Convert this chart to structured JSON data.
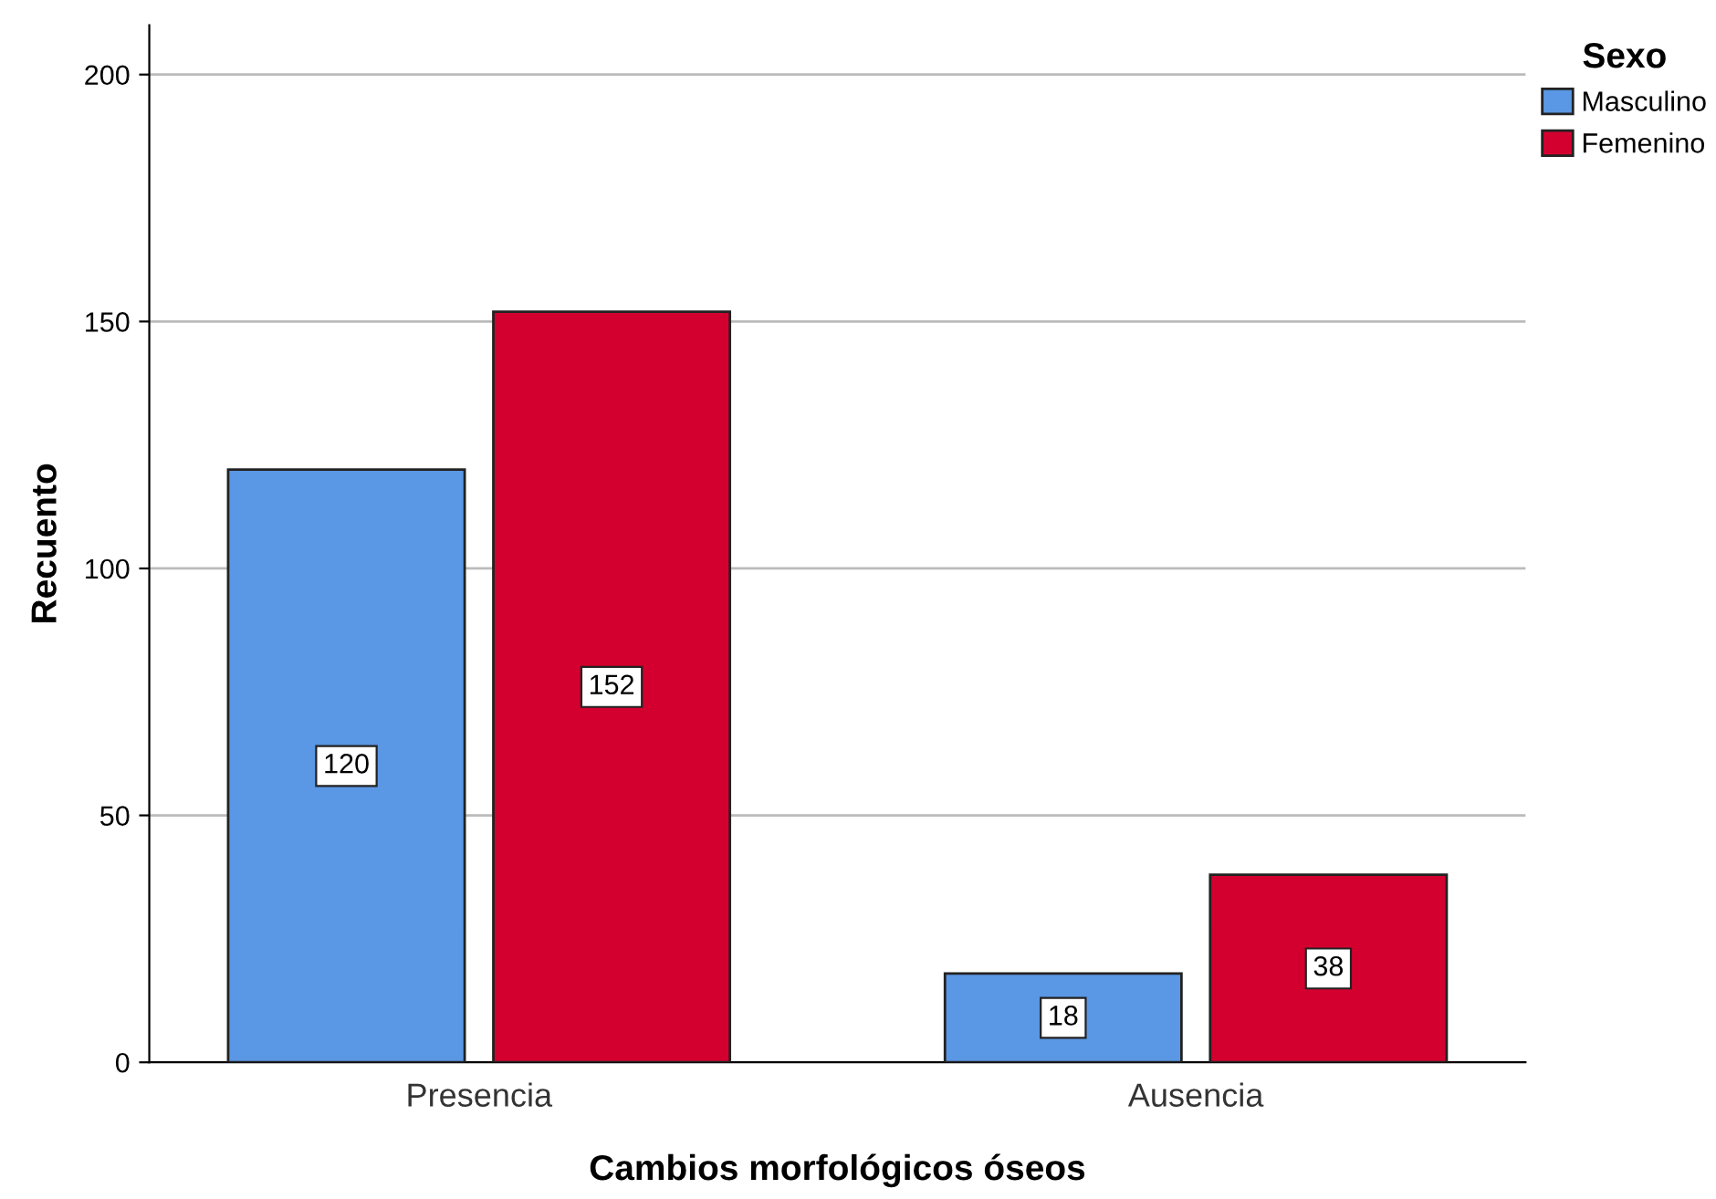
{
  "chart_data": {
    "type": "bar",
    "xlabel": "Cambios morfológicos óseos",
    "ylabel": "Recuento",
    "legend_title": "Sexo",
    "categories": [
      "Presencia",
      "Ausencia"
    ],
    "series": [
      {
        "name": "Masculino",
        "color": "#5a97e4",
        "values": [
          120,
          18
        ]
      },
      {
        "name": "Femenino",
        "color": "#d3002f",
        "values": [
          152,
          38
        ]
      }
    ],
    "ylim": [
      0,
      210
    ],
    "yticks": [
      0,
      50,
      100,
      150,
      200
    ],
    "grid": "y",
    "legend": "top right",
    "data_labels": true
  }
}
